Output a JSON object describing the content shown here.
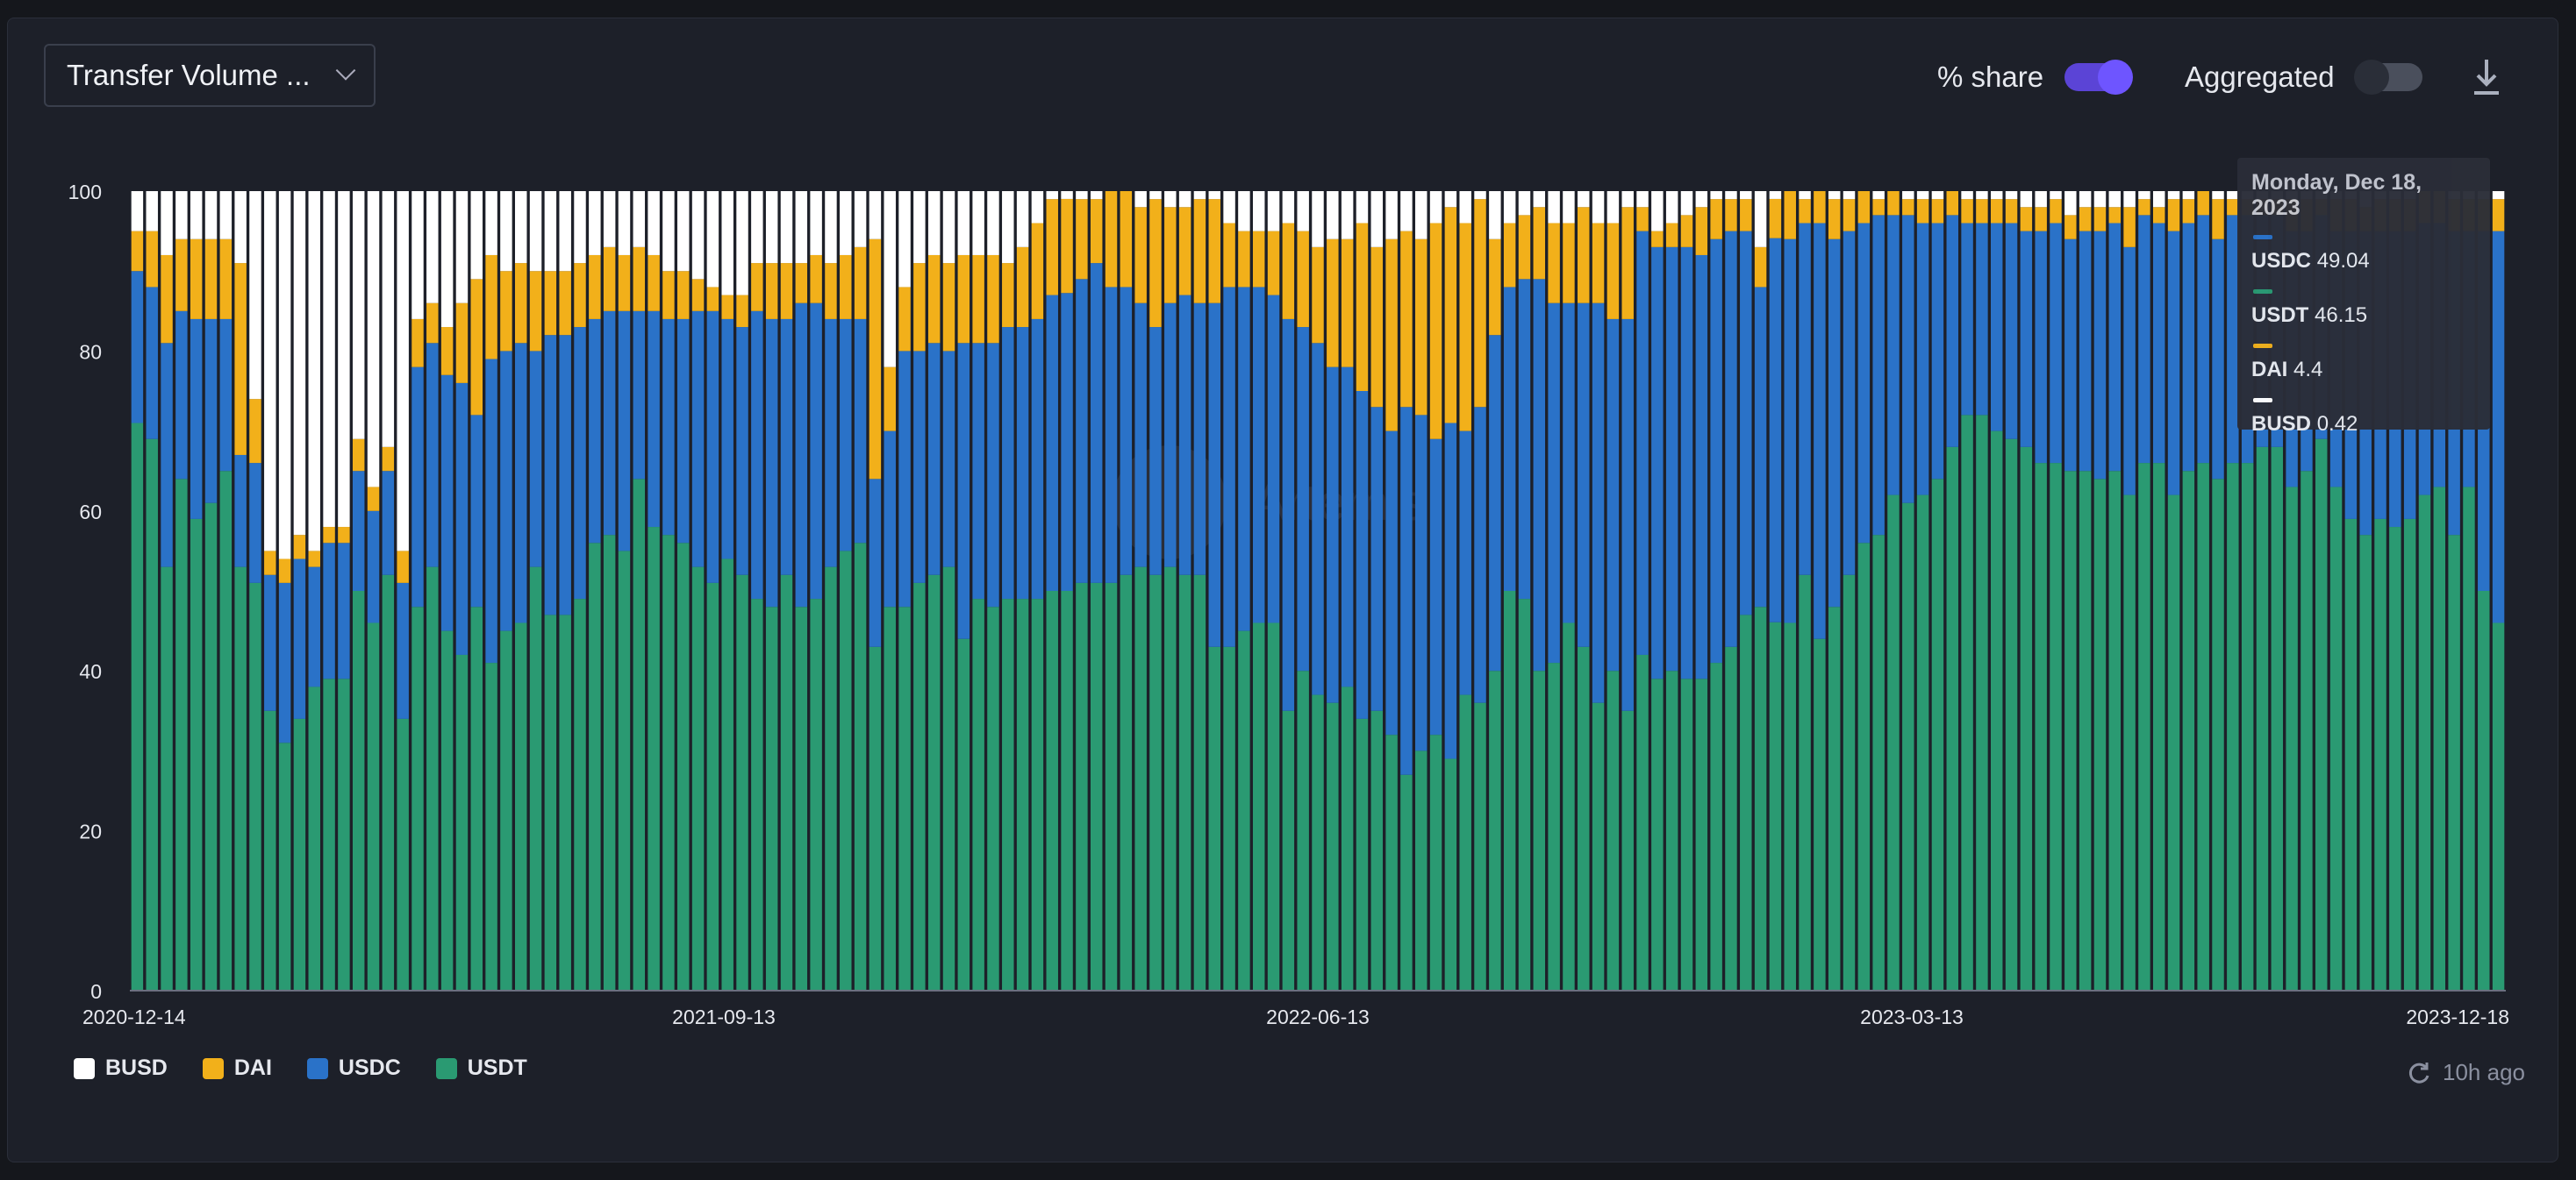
{
  "controls": {
    "metric_select_label": "Transfer Volume ...",
    "share_label": "% share",
    "share_on": true,
    "aggregated_label": "Aggregated",
    "aggregated_on": false,
    "download_icon": "download-icon"
  },
  "updated_text": "10h ago",
  "watermark_text": "Artemis",
  "tooltip": {
    "date": "Monday, Dec 18, 2023",
    "rows": [
      {
        "name": "USDC",
        "value": "49.04",
        "color": "#2a72c8"
      },
      {
        "name": "USDT",
        "value": "46.15",
        "color": "#2a9a72"
      },
      {
        "name": "DAI",
        "value": "4.4",
        "color": "#f2b01a"
      },
      {
        "name": "BUSD",
        "value": "0.42",
        "color": "#ffffff"
      }
    ]
  },
  "colors": {
    "BUSD": "#ffffff",
    "DAI": "#f2b01a",
    "USDC": "#2a72c8",
    "USDT": "#2a9a72"
  },
  "chart_data": {
    "type": "bar",
    "stacked": true,
    "percent_share": true,
    "x_range": [
      "2020-12-14",
      "2023-12-18"
    ],
    "x_tick_labels": [
      "2020-12-14",
      "2021-09-13",
      "2022-06-13",
      "2023-03-13",
      "2023-12-18"
    ],
    "y_ticks": [
      "0",
      "20",
      "40",
      "60",
      "80",
      "100"
    ],
    "ylim": [
      0,
      100
    ],
    "grid": false,
    "legend_position": "bottom-left",
    "legend": [
      "BUSD",
      "DAI",
      "USDC",
      "USDT"
    ],
    "series_order_bottom_to_top": [
      "USDT",
      "USDC",
      "DAI",
      "BUSD"
    ],
    "usdt": [
      71,
      69,
      53,
      64,
      59,
      61,
      65,
      53,
      51,
      35,
      31,
      34,
      38,
      39,
      39,
      50,
      46,
      52,
      34,
      48,
      53,
      45,
      42,
      48,
      41,
      45,
      46,
      53,
      47,
      47,
      49,
      56,
      57,
      55,
      64,
      58,
      57,
      56,
      53,
      51,
      54,
      52,
      49,
      48,
      52,
      48,
      49,
      53,
      55,
      56,
      43,
      48,
      48,
      51,
      52,
      53,
      44,
      49,
      48,
      49,
      49,
      49,
      50,
      51,
      51,
      51,
      51,
      52,
      53,
      52,
      53,
      52,
      52,
      43,
      43,
      45,
      46,
      46,
      35,
      40,
      37,
      36,
      38,
      34,
      35,
      32,
      27,
      30,
      32,
      29,
      37,
      36,
      40,
      50,
      49,
      40,
      41,
      46,
      43,
      36,
      40,
      35,
      42,
      39,
      40,
      39,
      39,
      41,
      43,
      47,
      48,
      47,
      46,
      52,
      44,
      48,
      52,
      56,
      57,
      62,
      61,
      62,
      64,
      68,
      72,
      72,
      70,
      69,
      68,
      66,
      66,
      65,
      65,
      64,
      65,
      62,
      66,
      66,
      62,
      65,
      66,
      64,
      66,
      66,
      68,
      68,
      63,
      65,
      69,
      63,
      59,
      57,
      59,
      58,
      59,
      62,
      63,
      57,
      63,
      50,
      46
    ],
    "usdc": [
      19,
      19,
      28,
      21,
      25,
      23,
      19,
      14,
      15,
      17,
      20,
      20,
      15,
      17,
      17,
      15,
      14,
      13,
      17,
      30,
      28,
      32,
      34,
      24,
      38,
      35,
      35,
      27,
      35,
      35,
      34,
      28,
      28,
      30,
      21,
      27,
      27,
      28,
      32,
      34,
      30,
      31,
      36,
      36,
      32,
      38,
      37,
      31,
      29,
      28,
      21,
      22,
      32,
      29,
      29,
      27,
      37,
      32,
      33,
      34,
      34,
      35,
      37,
      38,
      38,
      40,
      37,
      36,
      33,
      31,
      33,
      35,
      34,
      43,
      45,
      43,
      42,
      41,
      49,
      43,
      44,
      42,
      40,
      41,
      38,
      38,
      46,
      42,
      37,
      42,
      33,
      37,
      42,
      38,
      40,
      49,
      45,
      40,
      43,
      50,
      44,
      49,
      53,
      54,
      53,
      54,
      53,
      53,
      52,
      48,
      40,
      49,
      48,
      44,
      52,
      46,
      43,
      40,
      40,
      35,
      36,
      34,
      32,
      29,
      24,
      24,
      26,
      27,
      27,
      29,
      30,
      29,
      30,
      31,
      31,
      31,
      31,
      30,
      33,
      31,
      31,
      30,
      31,
      31,
      29,
      29,
      32,
      30,
      28,
      32,
      36,
      38,
      36,
      37,
      36,
      34,
      33,
      38,
      32,
      45,
      49
    ],
    "dai": [
      5,
      7,
      11,
      9,
      10,
      10,
      10,
      24,
      8,
      3,
      3,
      3,
      2,
      2,
      2,
      4,
      3,
      3,
      4,
      6,
      5,
      6,
      10,
      17,
      13,
      10,
      10,
      10,
      8,
      8,
      8,
      8,
      8,
      7,
      8,
      7,
      6,
      6,
      4,
      3,
      3,
      4,
      6,
      7,
      7,
      5,
      6,
      7,
      8,
      9,
      30,
      8,
      8,
      11,
      11,
      11,
      11,
      11,
      11,
      8,
      10,
      12,
      12,
      12,
      10,
      8,
      12,
      12,
      12,
      16,
      12,
      11,
      13,
      13,
      8,
      7,
      7,
      8,
      12,
      12,
      12,
      16,
      16,
      21,
      20,
      24,
      22,
      22,
      27,
      27,
      26,
      26,
      12,
      8,
      8,
      9,
      10,
      10,
      12,
      10,
      12,
      14,
      3,
      2,
      3,
      4,
      6,
      5,
      4,
      4,
      5,
      5,
      6,
      3,
      4,
      5,
      4,
      4,
      2,
      3,
      2,
      3,
      3,
      3,
      3,
      3,
      3,
      3,
      3,
      3,
      3,
      3,
      3,
      3,
      2,
      5,
      2,
      2,
      4,
      3,
      3,
      5,
      2,
      2,
      2,
      2,
      4,
      4,
      2,
      4,
      4,
      3,
      4,
      4,
      4,
      4,
      4,
      4,
      4,
      4,
      4
    ],
    "busd": [
      5,
      5,
      8,
      6,
      6,
      6,
      6,
      9,
      26,
      45,
      46,
      43,
      45,
      42,
      42,
      31,
      37,
      32,
      45,
      16,
      14,
      17,
      14,
      11,
      8,
      10,
      9,
      10,
      10,
      10,
      9,
      8,
      7,
      8,
      7,
      8,
      10,
      10,
      11,
      12,
      13,
      13,
      9,
      9,
      9,
      9,
      8,
      9,
      8,
      7,
      6,
      22,
      12,
      9,
      8,
      9,
      8,
      8,
      8,
      9,
      7,
      4,
      1,
      1,
      1,
      1,
      0,
      0,
      2,
      1,
      2,
      2,
      1,
      1,
      4,
      5,
      5,
      5,
      4,
      5,
      7,
      6,
      6,
      4,
      7,
      6,
      5,
      6,
      4,
      2,
      4,
      1,
      6,
      4,
      3,
      2,
      4,
      4,
      2,
      4,
      4,
      2,
      2,
      5,
      4,
      3,
      2,
      1,
      1,
      1,
      7,
      1,
      0,
      1,
      0,
      1,
      1,
      0,
      1,
      0,
      1,
      1,
      1,
      0,
      1,
      1,
      1,
      1,
      2,
      2,
      1,
      3,
      2,
      2,
      2,
      2,
      1,
      2,
      1,
      1,
      0,
      1,
      1,
      1,
      1,
      1,
      1,
      1,
      1,
      1,
      1,
      2,
      1,
      1,
      1,
      0,
      0,
      1,
      1,
      1,
      1
    ]
  }
}
